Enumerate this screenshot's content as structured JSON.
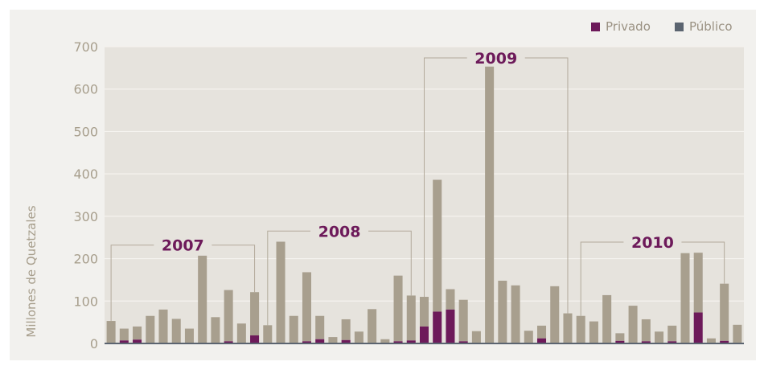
{
  "chart_data": {
    "type": "bar",
    "stacked": true,
    "ylabel": "Millones de Quetzales",
    "ylim": [
      0,
      700
    ],
    "yticks": [
      0,
      100,
      200,
      300,
      400,
      500,
      600,
      700
    ],
    "grid": true,
    "legend_position": "top-right",
    "series": [
      {
        "name": "Privado",
        "color": "#6d1a5a",
        "values": [
          0,
          7,
          9,
          0,
          0,
          0,
          0,
          0,
          0,
          5,
          0,
          19,
          0,
          0,
          0,
          5,
          10,
          0,
          8,
          0,
          0,
          0,
          5,
          7,
          40,
          75,
          80,
          5,
          0,
          0,
          0,
          0,
          0,
          12,
          0,
          0,
          0,
          0,
          0,
          6,
          0,
          5,
          0,
          5,
          0,
          73,
          0,
          6,
          0
        ]
      },
      {
        "name": "Público",
        "color": "#a89f8e",
        "values": [
          53,
          28,
          31,
          65,
          80,
          58,
          35,
          207,
          62,
          121,
          47,
          102,
          43,
          240,
          65,
          163,
          55,
          15,
          49,
          28,
          81,
          10,
          155,
          106,
          70,
          311,
          48,
          98,
          29,
          653,
          148,
          137,
          30,
          30,
          135,
          71,
          65,
          52,
          114,
          18,
          89,
          52,
          28,
          37,
          213,
          141,
          12,
          135,
          44
        ]
      }
    ],
    "legend_markers": [
      {
        "name": "Privado",
        "color": "#6d1a5a"
      },
      {
        "name": "Público",
        "color": "#5b6470"
      }
    ],
    "annotations": [
      {
        "label": "2007",
        "start": 0,
        "end": 11
      },
      {
        "label": "2008",
        "start": 12,
        "end": 23
      },
      {
        "label": "2009",
        "start": 24,
        "end": 35
      },
      {
        "label": "2010",
        "start": 36,
        "end": 47
      }
    ],
    "colors": {
      "plot_background": "#e6e3dd",
      "gridline": "#f5f3ef",
      "axis_text": "#a79e8c",
      "year_label": "#6d1a5a",
      "bracket": "#b3aa9b",
      "baseline": "#5b6470"
    }
  }
}
